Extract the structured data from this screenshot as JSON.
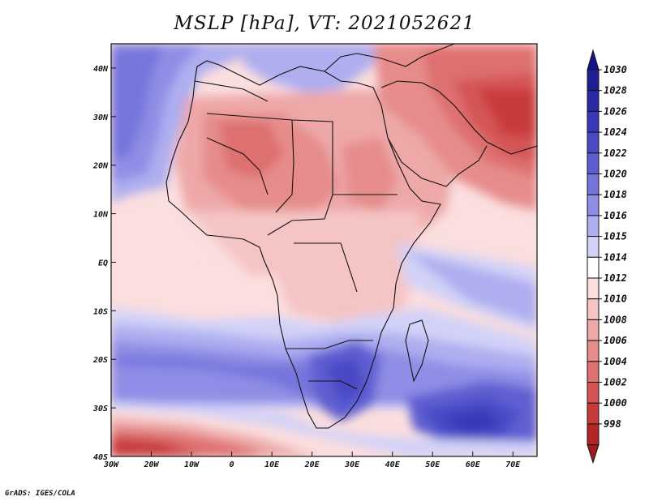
{
  "title": "MSLP [hPa], VT: 2021052621",
  "credit": "GrADS: IGES/COLA",
  "map": {
    "lon_range": [
      -30,
      76
    ],
    "lat_range": [
      -40,
      45
    ],
    "lon_ticks": [
      {
        "value": -30,
        "label": "30W"
      },
      {
        "value": -20,
        "label": "20W"
      },
      {
        "value": -10,
        "label": "10W"
      },
      {
        "value": 0,
        "label": "0"
      },
      {
        "value": 10,
        "label": "10E"
      },
      {
        "value": 20,
        "label": "20E"
      },
      {
        "value": 30,
        "label": "30E"
      },
      {
        "value": 40,
        "label": "40E"
      },
      {
        "value": 50,
        "label": "50E"
      },
      {
        "value": 60,
        "label": "60E"
      },
      {
        "value": 70,
        "label": "70E"
      }
    ],
    "lat_ticks": [
      {
        "value": 40,
        "label": "40N"
      },
      {
        "value": 30,
        "label": "30N"
      },
      {
        "value": 20,
        "label": "20N"
      },
      {
        "value": 10,
        "label": "10N"
      },
      {
        "value": 0,
        "label": "EQ"
      },
      {
        "value": -10,
        "label": "10S"
      },
      {
        "value": -20,
        "label": "20S"
      },
      {
        "value": -30,
        "label": "30S"
      },
      {
        "value": -40,
        "label": "40S"
      }
    ]
  },
  "colorbar": {
    "levels": [
      {
        "label": "1030",
        "color": "#1e1e96"
      },
      {
        "label": "1028",
        "color": "#2a2aa8"
      },
      {
        "label": "1026",
        "color": "#3838b8"
      },
      {
        "label": "1024",
        "color": "#4a4ac6"
      },
      {
        "label": "1022",
        "color": "#5e5ed2"
      },
      {
        "label": "1020",
        "color": "#7474dc"
      },
      {
        "label": "1018",
        "color": "#8e8ee6"
      },
      {
        "label": "1016",
        "color": "#aeaef0"
      },
      {
        "label": "1015",
        "color": "#d2d2f8"
      },
      {
        "label": "1014",
        "color": "#ffffff"
      },
      {
        "label": "1012",
        "color": "#fbdede"
      },
      {
        "label": "1010",
        "color": "#f5c4c4"
      },
      {
        "label": "1008",
        "color": "#eea8a8"
      },
      {
        "label": "1006",
        "color": "#e68c8c"
      },
      {
        "label": "1004",
        "color": "#de7070"
      },
      {
        "label": "1002",
        "color": "#d45454"
      },
      {
        "label": "1000",
        "color": "#c83a3a"
      },
      {
        "label": "998",
        "color": "#b42626"
      }
    ],
    "top_triangle_color": "#14148a",
    "bottom_triangle_color": "#a01c1c"
  }
}
